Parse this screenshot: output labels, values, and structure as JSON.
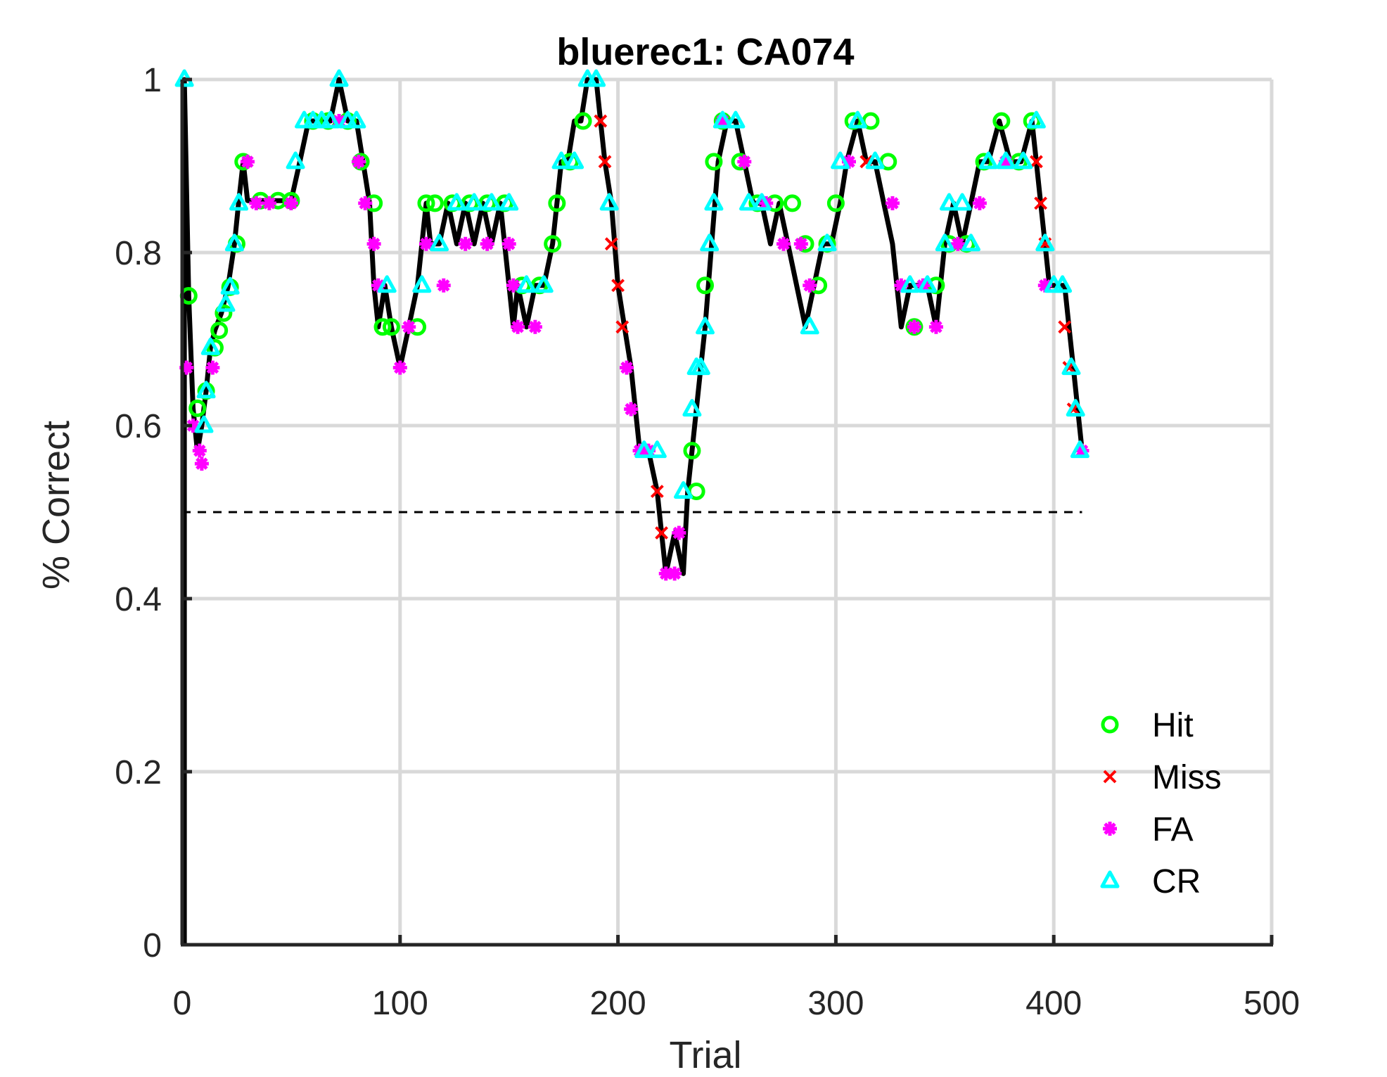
{
  "chart_data": {
    "type": "line",
    "title": "bluerec1: CA074",
    "xlabel": "Trial",
    "ylabel": "% Correct",
    "xlim": [
      0,
      500
    ],
    "ylim": [
      0,
      1
    ],
    "xticks": [
      0,
      100,
      200,
      300,
      400,
      500
    ],
    "yticks": [
      0,
      0.2,
      0.4,
      0.6,
      0.8,
      1
    ],
    "xtick_labels": [
      "0",
      "100",
      "200",
      "300",
      "400",
      "500"
    ],
    "ytick_labels": [
      "0",
      "0.2",
      "0.4",
      "0.6",
      "0.8",
      "1"
    ],
    "grid": true,
    "legend_position": "lower-right",
    "reference_line": {
      "y": 0.5,
      "x_range": [
        0,
        413
      ],
      "style": "dashed"
    },
    "performance_curve": {
      "x": [
        1,
        3,
        5,
        7,
        9,
        11,
        13,
        15,
        18,
        21,
        24,
        26,
        28,
        30,
        34,
        38,
        44,
        50,
        54,
        58,
        63,
        68,
        72,
        76,
        80,
        83,
        86,
        88,
        90,
        93,
        96,
        100,
        104,
        108,
        112,
        114,
        118,
        122,
        126,
        130,
        134,
        138,
        142,
        146,
        150,
        152,
        154,
        158,
        162,
        166,
        170,
        172,
        174,
        177,
        180,
        183,
        186,
        188,
        190,
        192,
        194,
        197,
        200,
        203,
        206,
        208,
        210,
        214,
        218,
        220,
        222,
        226,
        230,
        232,
        234,
        236,
        238,
        240,
        243,
        246,
        250,
        254,
        258,
        262,
        266,
        270,
        274,
        278,
        282,
        286,
        290,
        294,
        298,
        302,
        305,
        310,
        314,
        318,
        322,
        326,
        330,
        334,
        338,
        342,
        346,
        350,
        354,
        358,
        362,
        366,
        370,
        375,
        380,
        385,
        390,
        392,
        394,
        396,
        398,
        402,
        405,
        407,
        409,
        411,
        413
      ],
      "y": [
        1.0,
        0.75,
        0.62,
        0.57,
        0.6,
        0.64,
        0.69,
        0.71,
        0.73,
        0.76,
        0.81,
        0.86,
        0.905,
        0.86,
        0.86,
        0.86,
        0.86,
        0.86,
        0.905,
        0.952,
        0.952,
        0.952,
        1.0,
        0.952,
        0.952,
        0.905,
        0.857,
        0.762,
        0.714,
        0.762,
        0.714,
        0.667,
        0.714,
        0.762,
        0.857,
        0.81,
        0.81,
        0.857,
        0.81,
        0.857,
        0.81,
        0.857,
        0.81,
        0.857,
        0.762,
        0.714,
        0.762,
        0.714,
        0.762,
        0.762,
        0.81,
        0.857,
        0.905,
        0.905,
        0.952,
        0.952,
        1.0,
        1.0,
        1.0,
        0.952,
        0.905,
        0.857,
        0.762,
        0.714,
        0.667,
        0.619,
        0.571,
        0.571,
        0.524,
        0.476,
        0.429,
        0.476,
        0.429,
        0.524,
        0.571,
        0.619,
        0.667,
        0.714,
        0.81,
        0.905,
        0.952,
        0.952,
        0.905,
        0.857,
        0.857,
        0.81,
        0.857,
        0.81,
        0.762,
        0.714,
        0.762,
        0.81,
        0.81,
        0.857,
        0.905,
        0.952,
        0.905,
        0.905,
        0.857,
        0.81,
        0.714,
        0.762,
        0.762,
        0.762,
        0.714,
        0.81,
        0.857,
        0.81,
        0.857,
        0.905,
        0.905,
        0.952,
        0.905,
        0.905,
        0.952,
        0.905,
        0.857,
        0.81,
        0.762,
        0.762,
        0.762,
        0.714,
        0.667,
        0.619,
        0.571
      ]
    },
    "series": [
      {
        "name": "Hit",
        "color": "#00ff00",
        "marker": "circle",
        "x": [
          3,
          7,
          11,
          15,
          17,
          19,
          22,
          25,
          28,
          36,
          44,
          50,
          60,
          67,
          76,
          82,
          88,
          92,
          96,
          108,
          112,
          116,
          124,
          132,
          140,
          148,
          156,
          164,
          170,
          172,
          178,
          184,
          234,
          236,
          240,
          244,
          248,
          256,
          264,
          272,
          280,
          286,
          292,
          296,
          300,
          308,
          316,
          324,
          336,
          346,
          352,
          360,
          368,
          376,
          384,
          390
        ],
        "y": [
          0.75,
          0.62,
          0.64,
          0.69,
          0.71,
          0.73,
          0.76,
          0.81,
          0.905,
          0.86,
          0.86,
          0.86,
          0.952,
          0.952,
          0.952,
          0.905,
          0.857,
          0.714,
          0.714,
          0.714,
          0.857,
          0.857,
          0.857,
          0.857,
          0.857,
          0.857,
          0.762,
          0.762,
          0.81,
          0.857,
          0.905,
          0.952,
          0.571,
          0.524,
          0.762,
          0.905,
          0.952,
          0.905,
          0.857,
          0.857,
          0.857,
          0.81,
          0.762,
          0.81,
          0.857,
          0.952,
          0.952,
          0.905,
          0.714,
          0.762,
          0.81,
          0.81,
          0.905,
          0.952,
          0.905,
          0.952
        ]
      },
      {
        "name": "Miss",
        "color": "#ff0000",
        "marker": "x",
        "x": [
          192,
          194,
          197,
          200,
          202,
          212,
          218,
          220,
          314,
          392,
          394,
          396,
          405,
          407,
          409
        ],
        "y": [
          0.952,
          0.905,
          0.81,
          0.762,
          0.714,
          0.571,
          0.524,
          0.476,
          0.905,
          0.905,
          0.857,
          0.81,
          0.714,
          0.667,
          0.619
        ]
      },
      {
        "name": "FA",
        "color": "#ff00ff",
        "marker": "asterisk",
        "x": [
          2,
          5,
          8,
          9,
          14,
          30,
          34,
          40,
          50,
          72,
          81,
          84,
          88,
          90,
          100,
          104,
          112,
          120,
          130,
          140,
          150,
          152,
          154,
          162,
          204,
          206,
          210,
          214,
          222,
          226,
          228,
          248,
          258,
          268,
          276,
          284,
          288,
          306,
          326,
          330,
          336,
          340,
          346,
          356,
          366,
          378,
          396,
          413
        ],
        "y": [
          0.667,
          0.6,
          0.571,
          0.556,
          0.667,
          0.905,
          0.857,
          0.857,
          0.857,
          0.952,
          0.905,
          0.857,
          0.81,
          0.762,
          0.667,
          0.714,
          0.81,
          0.762,
          0.81,
          0.81,
          0.81,
          0.762,
          0.714,
          0.714,
          0.667,
          0.619,
          0.571,
          0.571,
          0.429,
          0.429,
          0.476,
          0.952,
          0.905,
          0.857,
          0.81,
          0.81,
          0.762,
          0.905,
          0.857,
          0.762,
          0.714,
          0.762,
          0.714,
          0.81,
          0.857,
          0.905,
          0.762,
          0.571
        ]
      },
      {
        "name": "CR",
        "color": "#00ffff",
        "marker": "triangle",
        "x": [
          1,
          10,
          11,
          13,
          20,
          22,
          24,
          26,
          52,
          56,
          60,
          64,
          68,
          72,
          76,
          80,
          94,
          110,
          118,
          126,
          134,
          142,
          150,
          158,
          166,
          174,
          180,
          186,
          190,
          196,
          212,
          218,
          230,
          234,
          236,
          238,
          240,
          242,
          244,
          248,
          254,
          260,
          266,
          288,
          296,
          302,
          310,
          318,
          334,
          342,
          350,
          352,
          358,
          362,
          370,
          378,
          386,
          392,
          396,
          400,
          404,
          408,
          410,
          412
        ],
        "y": [
          1.0,
          0.6,
          0.64,
          0.69,
          0.74,
          0.76,
          0.81,
          0.857,
          0.905,
          0.952,
          0.952,
          0.952,
          0.952,
          1.0,
          0.952,
          0.952,
          0.762,
          0.762,
          0.81,
          0.857,
          0.857,
          0.857,
          0.857,
          0.762,
          0.762,
          0.905,
          0.905,
          1.0,
          1.0,
          0.857,
          0.571,
          0.571,
          0.524,
          0.619,
          0.667,
          0.667,
          0.714,
          0.81,
          0.857,
          0.952,
          0.952,
          0.857,
          0.857,
          0.714,
          0.81,
          0.905,
          0.952,
          0.905,
          0.762,
          0.762,
          0.81,
          0.857,
          0.857,
          0.81,
          0.905,
          0.905,
          0.905,
          0.952,
          0.81,
          0.762,
          0.762,
          0.667,
          0.619,
          0.571
        ]
      }
    ]
  }
}
